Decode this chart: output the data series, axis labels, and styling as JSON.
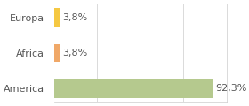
{
  "categories": [
    "America",
    "Africa",
    "Europa"
  ],
  "values": [
    3.8,
    3.8,
    92.3
  ],
  "labels": [
    "3,8%",
    "3,8%",
    "92,3%"
  ],
  "bar_colors": [
    "#f5c842",
    "#f0a868",
    "#b5c98e"
  ],
  "background_color": "#ffffff",
  "xlim": [
    0,
    100
  ],
  "label_fontsize": 8.0,
  "tick_fontsize": 8.0,
  "grid_lines": [
    25,
    50,
    75,
    100
  ]
}
